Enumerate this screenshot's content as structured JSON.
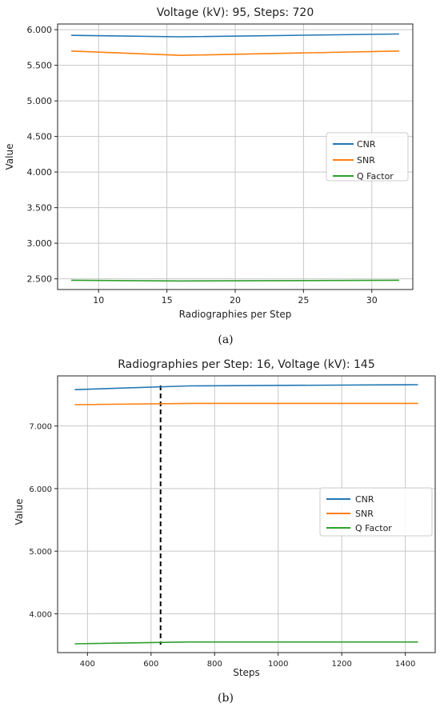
{
  "chart_data": [
    {
      "type": "line",
      "title": "Voltage (kV): 95, Steps: 720",
      "xlabel": "Radiographies per Step",
      "ylabel": "Value",
      "caption": "(a)",
      "xlim": [
        7,
        33
      ],
      "ylim": [
        2.35,
        6.08
      ],
      "xticks": [
        10,
        15,
        20,
        25,
        30
      ],
      "yticks": [
        2.5,
        3.0,
        3.5,
        4.0,
        4.5,
        5.0,
        5.5,
        6.0
      ],
      "ytick_labels": [
        "2.500",
        "3.000",
        "3.500",
        "4.000",
        "4.500",
        "5.000",
        "5.500",
        "6.000"
      ],
      "grid": true,
      "legend_position": "center-right",
      "x": [
        8,
        16,
        32
      ],
      "series": [
        {
          "name": "CNR",
          "color": "#1f77b4",
          "values": [
            5.92,
            5.9,
            5.94
          ]
        },
        {
          "name": "SNR",
          "color": "#ff7f0e",
          "values": [
            5.7,
            5.64,
            5.7
          ]
        },
        {
          "name": "Q Factor",
          "color": "#2ca02c",
          "values": [
            2.48,
            2.47,
            2.48
          ]
        }
      ]
    },
    {
      "type": "line",
      "title": "Radiographies per Step: 16, Voltage (kV): 145",
      "xlabel": "Steps",
      "ylabel": "Value",
      "caption": "(b)",
      "xlim": [
        306,
        1494
      ],
      "ylim": [
        3.38,
        7.8
      ],
      "xticks": [
        400,
        600,
        800,
        1000,
        1200,
        1400
      ],
      "yticks": [
        4.0,
        5.0,
        6.0,
        7.0
      ],
      "ytick_labels": [
        "4.000",
        "5.000",
        "6.000",
        "7.000"
      ],
      "grid": true,
      "legend_position": "center-right",
      "vline_x": 630,
      "x": [
        360,
        720,
        1440
      ],
      "series": [
        {
          "name": "CNR",
          "color": "#1f77b4",
          "values": [
            7.58,
            7.64,
            7.66
          ]
        },
        {
          "name": "SNR",
          "color": "#ff7f0e",
          "values": [
            7.34,
            7.36,
            7.36
          ]
        },
        {
          "name": "Q Factor",
          "color": "#2ca02c",
          "values": [
            3.52,
            3.55,
            3.55
          ]
        }
      ]
    }
  ]
}
